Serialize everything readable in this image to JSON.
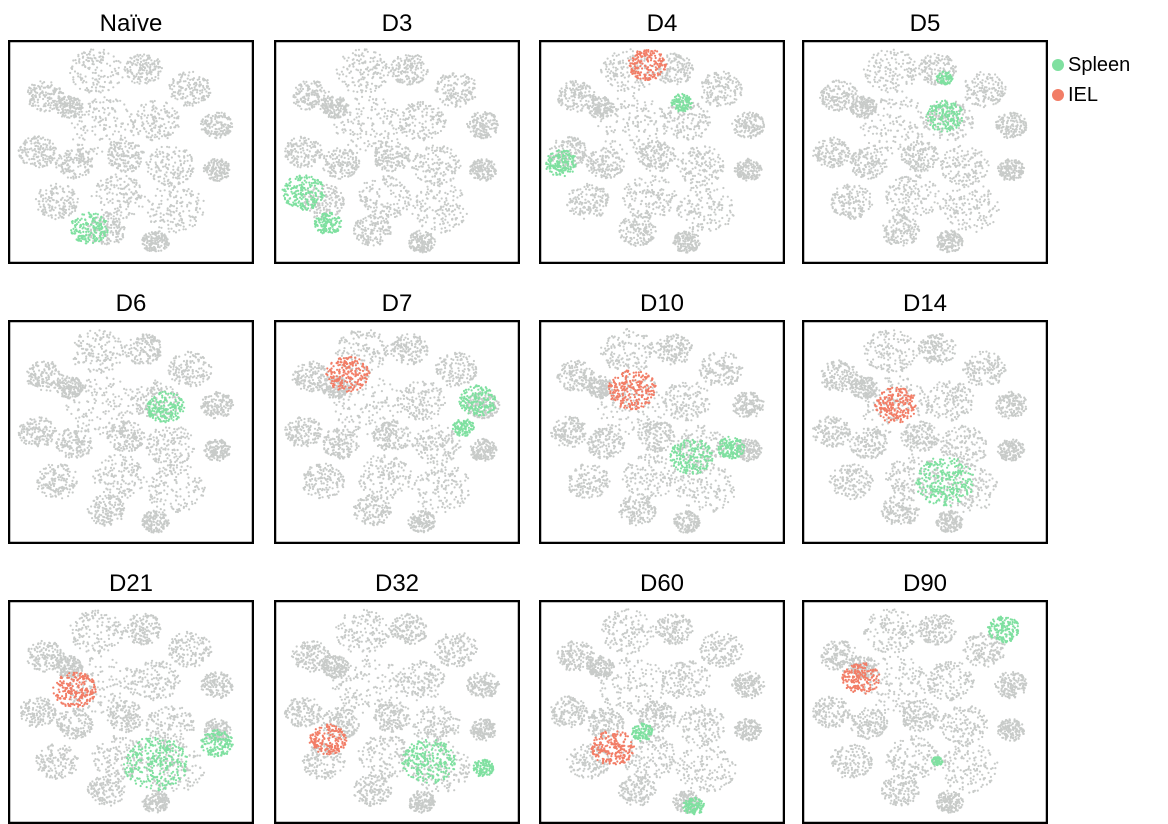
{
  "chart_data": {
    "type": "scatter",
    "colors": {
      "background_cells": "#c8cbc9",
      "Spleen": "#7fe0a0",
      "IEL": "#f27d66"
    },
    "legend": {
      "placement": "top-right",
      "items": [
        {
          "name": "Spleen",
          "color": "#7fe0a0"
        },
        {
          "name": "IEL",
          "color": "#f27d66"
        }
      ]
    },
    "panels": [
      {
        "title": "Naïve",
        "spleen": [
          {
            "x": 0.33,
            "y": 0.84,
            "r": 0.07
          }
        ],
        "iel": []
      },
      {
        "title": "D3",
        "spleen": [
          {
            "x": 0.12,
            "y": 0.68,
            "r": 0.08
          },
          {
            "x": 0.22,
            "y": 0.82,
            "r": 0.05
          }
        ],
        "iel": []
      },
      {
        "title": "D4",
        "spleen": [
          {
            "x": 0.09,
            "y": 0.55,
            "r": 0.06
          },
          {
            "x": 0.58,
            "y": 0.28,
            "r": 0.04
          }
        ],
        "iel": [
          {
            "x": 0.44,
            "y": 0.11,
            "r": 0.07
          }
        ]
      },
      {
        "title": "D5",
        "spleen": [
          {
            "x": 0.58,
            "y": 0.34,
            "r": 0.07
          },
          {
            "x": 0.58,
            "y": 0.17,
            "r": 0.03
          }
        ],
        "iel": []
      },
      {
        "title": "D6",
        "spleen": [
          {
            "x": 0.64,
            "y": 0.39,
            "r": 0.07
          }
        ],
        "iel": []
      },
      {
        "title": "D7",
        "spleen": [
          {
            "x": 0.83,
            "y": 0.36,
            "r": 0.07
          },
          {
            "x": 0.77,
            "y": 0.48,
            "r": 0.04
          }
        ],
        "iel": [
          {
            "x": 0.3,
            "y": 0.24,
            "r": 0.08
          }
        ]
      },
      {
        "title": "D10",
        "spleen": [
          {
            "x": 0.62,
            "y": 0.61,
            "r": 0.08
          },
          {
            "x": 0.78,
            "y": 0.57,
            "r": 0.05
          }
        ],
        "iel": [
          {
            "x": 0.38,
            "y": 0.31,
            "r": 0.09
          }
        ]
      },
      {
        "title": "D14",
        "spleen": [
          {
            "x": 0.58,
            "y": 0.72,
            "r": 0.11
          }
        ],
        "iel": [
          {
            "x": 0.38,
            "y": 0.38,
            "r": 0.08
          }
        ]
      },
      {
        "title": "D21",
        "spleen": [
          {
            "x": 0.6,
            "y": 0.73,
            "r": 0.12
          },
          {
            "x": 0.85,
            "y": 0.64,
            "r": 0.06
          }
        ],
        "iel": [
          {
            "x": 0.27,
            "y": 0.4,
            "r": 0.08
          }
        ]
      },
      {
        "title": "D32",
        "spleen": [
          {
            "x": 0.63,
            "y": 0.72,
            "r": 0.1
          },
          {
            "x": 0.85,
            "y": 0.75,
            "r": 0.04
          }
        ],
        "iel": [
          {
            "x": 0.22,
            "y": 0.62,
            "r": 0.07
          }
        ]
      },
      {
        "title": "D60",
        "spleen": [
          {
            "x": 0.42,
            "y": 0.59,
            "r": 0.04
          },
          {
            "x": 0.63,
            "y": 0.92,
            "r": 0.04
          }
        ],
        "iel": [
          {
            "x": 0.3,
            "y": 0.66,
            "r": 0.08
          }
        ]
      },
      {
        "title": "D90",
        "spleen": [
          {
            "x": 0.82,
            "y": 0.13,
            "r": 0.06
          },
          {
            "x": 0.55,
            "y": 0.72,
            "r": 0.02
          }
        ],
        "iel": [
          {
            "x": 0.24,
            "y": 0.35,
            "r": 0.07
          }
        ]
      }
    ]
  }
}
